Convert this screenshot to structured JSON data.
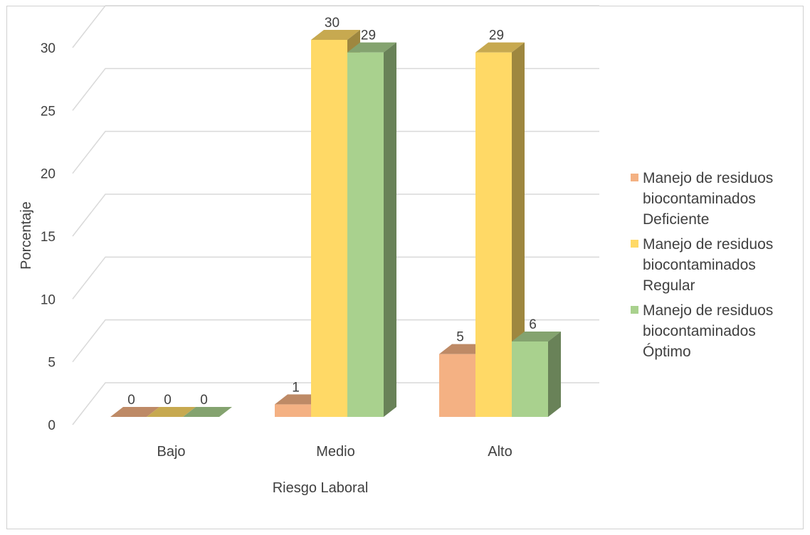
{
  "chart_data": {
    "type": "bar",
    "categories": [
      "Bajo",
      "Medio",
      "Alto"
    ],
    "series": [
      {
        "name": "Manejo de residuos\nbiocontaminados\nDeficiente",
        "values": [
          0,
          1,
          5
        ],
        "color": "#F4B183"
      },
      {
        "name": "Manejo de residuos\nbiocontaminados\nRegular",
        "values": [
          0,
          30,
          29
        ],
        "color": "#FFD966"
      },
      {
        "name": "Manejo de residuos\nbiocontaminados\nÓptimo",
        "values": [
          0,
          29,
          6
        ],
        "color": "#A9D18E"
      }
    ],
    "title": "",
    "xlabel": "Riesgo Laboral",
    "ylabel": "Porcentaje",
    "ylim": [
      0,
      30
    ],
    "yticks": [
      0,
      5,
      10,
      15,
      20,
      25,
      30
    ],
    "grid": true,
    "legend_position": "right",
    "data_labels": true
  }
}
